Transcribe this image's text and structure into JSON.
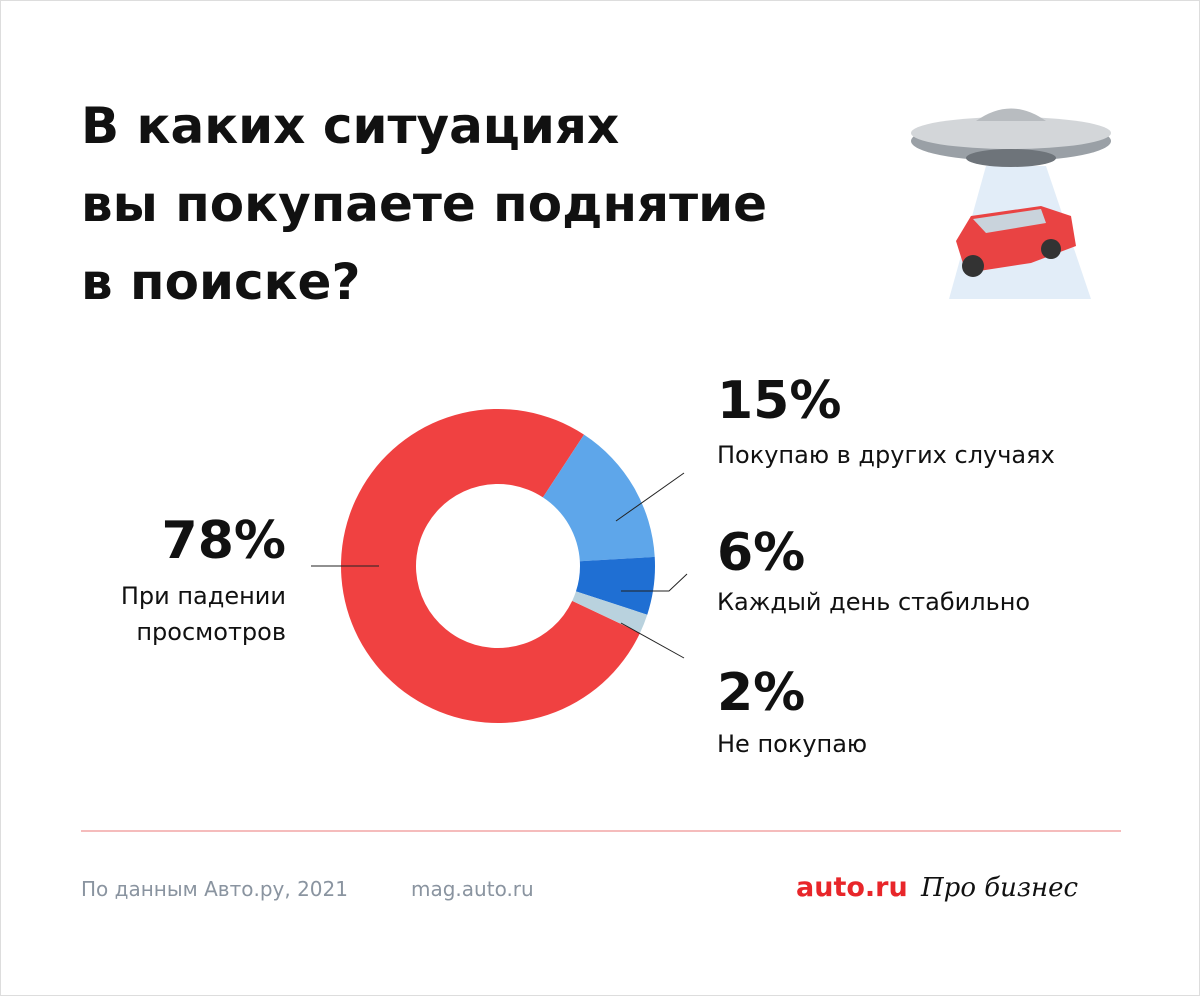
{
  "chart_data": {
    "type": "donut",
    "title": [
      "В каких ситуациях",
      "вы покупаете поднятие",
      "в поиске?"
    ],
    "categories": [
      "При падении просмотров",
      "Покупаю в других случаях",
      "Каждый день стабильно",
      "Не покупаю"
    ],
    "values": [
      78,
      15,
      6,
      2
    ],
    "value_labels": [
      "78%",
      "15%",
      "6%",
      "2%"
    ],
    "colors": [
      "#f04141",
      "#5ea6ea",
      "#1f6fd3",
      "#b9d2de"
    ]
  },
  "footer": {
    "source": "По данным Авто.ру, 2021",
    "site": "mag.auto.ru",
    "logo": "auto.ru",
    "partner": "Про бизнес"
  }
}
